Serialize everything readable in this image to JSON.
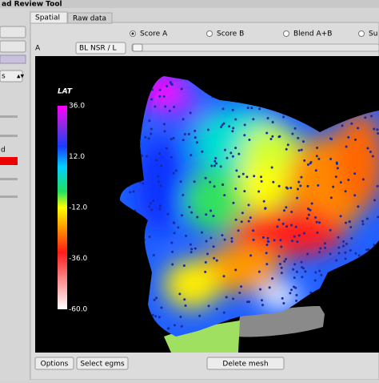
{
  "window": {
    "title": "ad Review Tool"
  },
  "tabs": [
    "Spatial",
    "Raw data"
  ],
  "score_options": [
    "Score A",
    "Score B",
    "Blend A+B",
    "Su"
  ],
  "selected_score": 0,
  "row": {
    "label": "A",
    "dropdown": "BL NSR / L"
  },
  "colorbar": {
    "title": "LAT",
    "ticks": [
      "36.0",
      "12.0",
      "-12.0",
      "-36.0",
      "-60.0"
    ]
  },
  "left_panel": {
    "dropdown": "s",
    "label": "d"
  },
  "buttons": [
    "Options",
    "Select egms",
    "Delete mesh"
  ]
}
